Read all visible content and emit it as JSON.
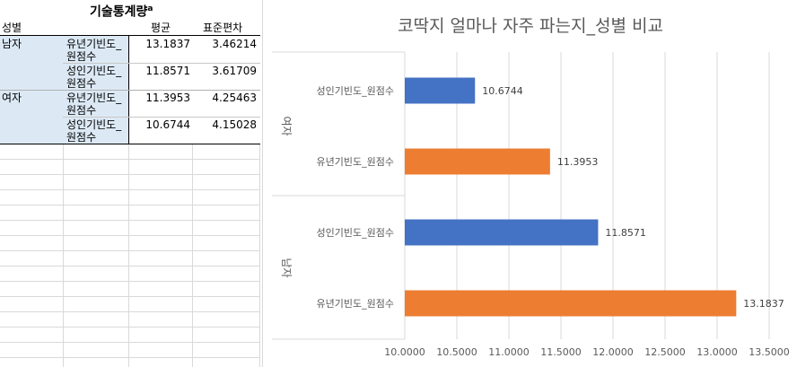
{
  "table": {
    "title": "기술통계량",
    "title_superscript": "a",
    "headers": [
      "성별",
      "",
      "평균",
      "표준편차"
    ],
    "rows": [
      {
        "gender": "남자",
        "var": "유년기빈도_원점수",
        "mean": "13.1837",
        "sd": "3.46214"
      },
      {
        "gender": "",
        "var": "성인기빈도_원점수",
        "mean": "11.8571",
        "sd": "3.61709"
      },
      {
        "gender": "여자",
        "var": "유년기빈도_원점수",
        "mean": "11.3953",
        "sd": "4.25463"
      },
      {
        "gender": "",
        "var": "성인기빈도_원점수",
        "mean": "10.6744",
        "sd": "4.15028"
      }
    ]
  },
  "chart_data": {
    "type": "bar",
    "orientation": "horizontal",
    "title": "코딱지 얼마나 자주 파는지_성별 비교",
    "xlim": [
      10.0,
      13.5
    ],
    "x_ticks": [
      "10.0000",
      "10.5000",
      "11.0000",
      "11.5000",
      "12.0000",
      "12.5000",
      "13.0000",
      "13.5000"
    ],
    "x_tick_values": [
      10.0,
      10.5,
      11.0,
      11.5,
      12.0,
      12.5,
      13.0,
      13.5
    ],
    "groups": [
      {
        "name": "여자",
        "bars": [
          {
            "label": "성인기빈도_원점수",
            "value": 10.6744,
            "value_label": "10.6744",
            "color": "#4472c4"
          },
          {
            "label": "유년기빈도_원점수",
            "value": 11.3953,
            "value_label": "11.3953",
            "color": "#ed7d31"
          }
        ]
      },
      {
        "name": "남자",
        "bars": [
          {
            "label": "성인기빈도_원점수",
            "value": 11.8571,
            "value_label": "11.8571",
            "color": "#4472c4"
          },
          {
            "label": "유년기빈도_원점수",
            "value": 13.1837,
            "value_label": "13.1837",
            "color": "#ed7d31"
          }
        ]
      }
    ]
  }
}
